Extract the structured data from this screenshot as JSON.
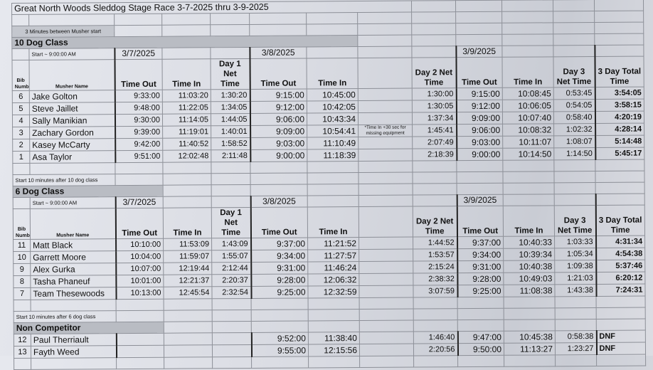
{
  "title": "Great North Woods Sleddog Stage Race 3-7-2025 thru 3-9-2025",
  "start_gap_note": "3  Minutes between Musher start",
  "headers": {
    "bib": "Bib Number",
    "musher": "Musher Name",
    "time_out": "Time Out",
    "time_in": "Time In",
    "day1_net": "Day 1 Net Time",
    "day2_net": "Day 2 Net Time",
    "day3_net": "Day 3 Net Time",
    "total": "3 Day Total Time"
  },
  "dates": {
    "day1": "3/7/2025",
    "day2": "3/8/2025",
    "day3": "3/9/2025"
  },
  "sections": [
    {
      "name": "10 Dog Class",
      "pre_note": "",
      "start": "Start ~ 9:00:00 AM",
      "rows": [
        {
          "bib": "6",
          "name": "Jake Golton",
          "d1_out": "9:33:00",
          "d1_in": "11:03:20",
          "d1_net": "1:30:20",
          "d2_out": "9:15:00",
          "d2_in": "10:45:00",
          "note": "",
          "d2_net": "1:30:00",
          "d3_out": "9:15:00",
          "d3_in": "10:08:45",
          "d3_net": "0:53:45",
          "total": "3:54:05"
        },
        {
          "bib": "5",
          "name": "Steve Jaillet",
          "d1_out": "9:48:00",
          "d1_in": "11:22:05",
          "d1_net": "1:34:05",
          "d2_out": "9:12:00",
          "d2_in": "10:42:05",
          "note": "",
          "d2_net": "1:30:05",
          "d3_out": "9:12:00",
          "d3_in": "10:06:05",
          "d3_net": "0:54:05",
          "total": "3:58:15"
        },
        {
          "bib": "4",
          "name": "Sally Manikian",
          "d1_out": "9:30:00",
          "d1_in": "11:14:05",
          "d1_net": "1:44:05",
          "d2_out": "9:06:00",
          "d2_in": "10:43:34",
          "note": "",
          "d2_net": "1:37:34",
          "d3_out": "9:09:00",
          "d3_in": "10:07:40",
          "d3_net": "0:58:40",
          "total": "4:20:19"
        },
        {
          "bib": "3",
          "name": "Zachary Gordon",
          "d1_out": "9:39:00",
          "d1_in": "11:19:01",
          "d1_net": "1:40:01",
          "d2_out": "9:09:00",
          "d2_in": "10:54:41",
          "note": "*Time In +30 sec for missing equipment",
          "d2_net": "1:45:41",
          "d3_out": "9:06:00",
          "d3_in": "10:08:32",
          "d3_net": "1:02:32",
          "total": "4:28:14"
        },
        {
          "bib": "2",
          "name": "Kasey McCarty",
          "d1_out": "9:42:00",
          "d1_in": "11:40:52",
          "d1_net": "1:58:52",
          "d2_out": "9:03:00",
          "d2_in": "11:10:49",
          "note": "",
          "d2_net": "2:07:49",
          "d3_out": "9:03:00",
          "d3_in": "10:11:07",
          "d3_net": "1:08:07",
          "total": "5:14:48"
        },
        {
          "bib": "1",
          "name": "Asa Taylor",
          "d1_out": "9:51:00",
          "d1_in": "12:02:48",
          "d1_net": "2:11:48",
          "d2_out": "9:00:00",
          "d2_in": "11:18:39",
          "note": "",
          "d2_net": "2:18:39",
          "d3_out": "9:00:00",
          "d3_in": "10:14:50",
          "d3_net": "1:14:50",
          "total": "5:45:17"
        }
      ]
    },
    {
      "name": "6 Dog Class",
      "pre_note": "Start 10 minutes after 10 dog class",
      "start": "Start ~ 9:00:00 AM",
      "rows": [
        {
          "bib": "11",
          "name": "Matt Black",
          "d1_out": "10:10:00",
          "d1_in": "11:53:09",
          "d1_net": "1:43:09",
          "d2_out": "9:37:00",
          "d2_in": "11:21:52",
          "note": "",
          "d2_net": "1:44:52",
          "d3_out": "9:37:00",
          "d3_in": "10:40:33",
          "d3_net": "1:03:33",
          "total": "4:31:34"
        },
        {
          "bib": "10",
          "name": "Garrett Moore",
          "d1_out": "10:04:00",
          "d1_in": "11:59:07",
          "d1_net": "1:55:07",
          "d2_out": "9:34:00",
          "d2_in": "11:27:57",
          "note": "",
          "d2_net": "1:53:57",
          "d3_out": "9:34:00",
          "d3_in": "10:39:34",
          "d3_net": "1:05:34",
          "total": "4:54:38"
        },
        {
          "bib": "9",
          "name": "Alex Gurka",
          "d1_out": "10:07:00",
          "d1_in": "12:19:44",
          "d1_net": "2:12:44",
          "d2_out": "9:31:00",
          "d2_in": "11:46:24",
          "note": "",
          "d2_net": "2:15:24",
          "d3_out": "9:31:00",
          "d3_in": "10:40:38",
          "d3_net": "1:09:38",
          "total": "5:37:46"
        },
        {
          "bib": "8",
          "name": "Tasha Phaneuf",
          "d1_out": "10:01:00",
          "d1_in": "12:21:37",
          "d1_net": "2:20:37",
          "d2_out": "9:28:00",
          "d2_in": "12:06:32",
          "note": "",
          "d2_net": "2:38:32",
          "d3_out": "9:28:00",
          "d3_in": "10:49:03",
          "d3_net": "1:21:03",
          "total": "6:20:12"
        },
        {
          "bib": "7",
          "name": "Team Thesewoods",
          "d1_out": "10:13:00",
          "d1_in": "12:45:54",
          "d1_net": "2:32:54",
          "d2_out": "9:25:00",
          "d2_in": "12:32:59",
          "note": "",
          "d2_net": "3:07:59",
          "d3_out": "9:25:00",
          "d3_in": "11:08:38",
          "d3_net": "1:43:38",
          "total": "7:24:31"
        }
      ]
    },
    {
      "name": "Non Competitor",
      "pre_note": "Start 10 minutes after 6 dog class",
      "rows": [
        {
          "bib": "12",
          "name": "Paul Therriault",
          "d1_out": "",
          "d1_in": "",
          "d1_net": "",
          "d2_out": "9:52:00",
          "d2_in": "11:38:40",
          "note": "",
          "d2_net": "1:46:40",
          "d3_out": "9:47:00",
          "d3_in": "10:45:38",
          "d3_net": "0:58:38",
          "total": "DNF"
        },
        {
          "bib": "13",
          "name": "Fayth Weed",
          "d1_out": "",
          "d1_in": "",
          "d1_net": "",
          "d2_out": "9:55:00",
          "d2_in": "12:15:56",
          "note": "",
          "d2_net": "2:20:56",
          "d3_out": "9:50:00",
          "d3_in": "11:13:27",
          "d3_net": "1:23:27",
          "total": "DNF"
        }
      ]
    }
  ]
}
